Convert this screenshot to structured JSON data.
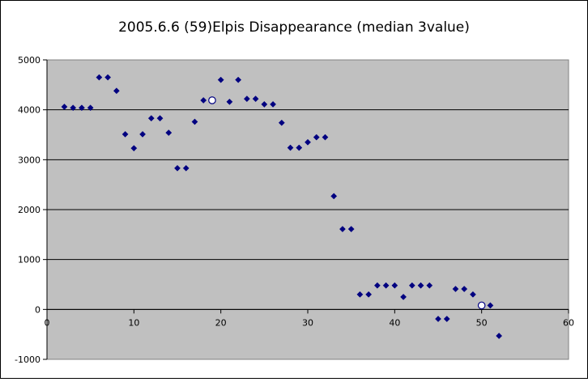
{
  "chart_data": {
    "type": "scatter",
    "title": "2005.6.6 (59)Elpis Disappearance (median 3value)",
    "xlabel": "",
    "ylabel": "",
    "xlim": [
      0,
      60
    ],
    "ylim": [
      -1000,
      5000
    ],
    "x_ticks": [
      0,
      10,
      20,
      30,
      40,
      50,
      60
    ],
    "y_ticks": [
      -1000,
      0,
      1000,
      2000,
      3000,
      4000,
      5000
    ],
    "x_tick_labels": [
      "0",
      "10",
      "20",
      "30",
      "40",
      "50",
      "60"
    ],
    "y_tick_labels": [
      "-1000",
      "0",
      "1000",
      "2000",
      "3000",
      "4000",
      "5000"
    ],
    "horizontal_gridlines": true,
    "vertical_gridlines": false,
    "legend": "none",
    "plot_background": "#c0c0c0",
    "series": [
      {
        "marker": "filled-diamond",
        "color": "#000080",
        "points": [
          [
            2,
            4060
          ],
          [
            3,
            4040
          ],
          [
            4,
            4040
          ],
          [
            5,
            4040
          ],
          [
            6,
            4650
          ],
          [
            7,
            4650
          ],
          [
            8,
            4380
          ],
          [
            9,
            3510
          ],
          [
            10,
            3230
          ],
          [
            11,
            3510
          ],
          [
            12,
            3830
          ],
          [
            13,
            3830
          ],
          [
            14,
            3540
          ],
          [
            15,
            2830
          ],
          [
            16,
            2830
          ],
          [
            17,
            3760
          ],
          [
            18,
            4190
          ],
          [
            20,
            4600
          ],
          [
            21,
            4160
          ],
          [
            22,
            4600
          ],
          [
            23,
            4220
          ],
          [
            24,
            4220
          ],
          [
            25,
            4110
          ],
          [
            26,
            4110
          ],
          [
            27,
            3740
          ],
          [
            28,
            3240
          ],
          [
            29,
            3240
          ],
          [
            30,
            3350
          ],
          [
            31,
            3450
          ],
          [
            32,
            3450
          ],
          [
            33,
            2270
          ],
          [
            34,
            1610
          ],
          [
            35,
            1610
          ],
          [
            36,
            300
          ],
          [
            37,
            300
          ],
          [
            38,
            480
          ],
          [
            39,
            480
          ],
          [
            40,
            480
          ],
          [
            41,
            250
          ],
          [
            42,
            480
          ],
          [
            43,
            480
          ],
          [
            44,
            480
          ],
          [
            45,
            -190
          ],
          [
            46,
            -190
          ],
          [
            47,
            410
          ],
          [
            48,
            410
          ],
          [
            49,
            300
          ],
          [
            51,
            80
          ],
          [
            52,
            -530
          ]
        ]
      },
      {
        "marker": "open-circle",
        "color": "#000080",
        "points": [
          [
            19,
            4190
          ],
          [
            50,
            80
          ]
        ]
      }
    ]
  }
}
